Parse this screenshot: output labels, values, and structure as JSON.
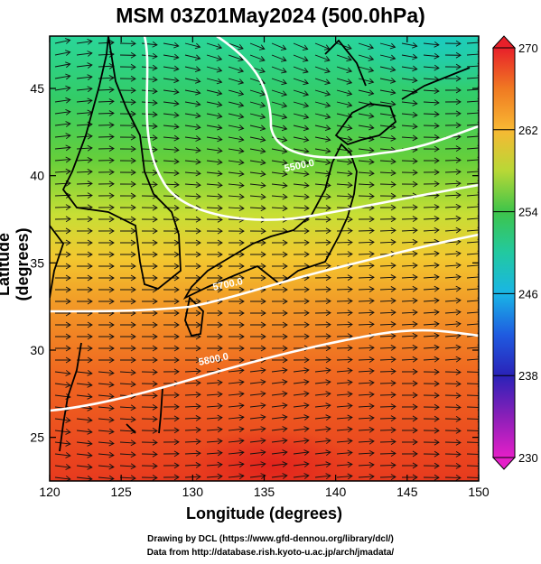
{
  "map": {
    "title": "MSM 03Z01May2024 (500.0hPa)",
    "xlabel": "Longitude (degrees)",
    "ylabel": "Latitude  (degrees)",
    "lon_range": [
      120,
      150
    ],
    "lat_range": [
      22.5,
      48
    ],
    "lon_ticks": [
      "120",
      "125",
      "130",
      "135",
      "140",
      "145",
      "150"
    ],
    "lat_ticks": [
      "25",
      "30",
      "35",
      "40",
      "45"
    ],
    "colorbar": {
      "range": [
        230,
        270
      ],
      "labels": [
        "270",
        "262",
        "254",
        "246",
        "238",
        "230"
      ],
      "colors": [
        "#e8202a",
        "#f07a22",
        "#f8b833",
        "#e9e233",
        "#93d23b",
        "#3ec44a",
        "#20c9a0",
        "#19b5e6",
        "#1f5be0",
        "#2a22b8",
        "#7a1fb2",
        "#e51fc8"
      ]
    },
    "contours": [
      {
        "label": "5500.0",
        "lon": 137.5,
        "lat": 40.4
      },
      {
        "label": "5700.0",
        "lon": 132.5,
        "lat": 33.6
      },
      {
        "label": "5800.0",
        "lon": 131.5,
        "lat": 29.3
      }
    ],
    "flow": "westerly"
  },
  "credits": {
    "line1": "Drawing by DCL (https://www.gfd-dennou.org/library/dcl/)",
    "line2": "Data from http://database.rish.kyoto-u.ac.jp/arch/jmadata/"
  }
}
